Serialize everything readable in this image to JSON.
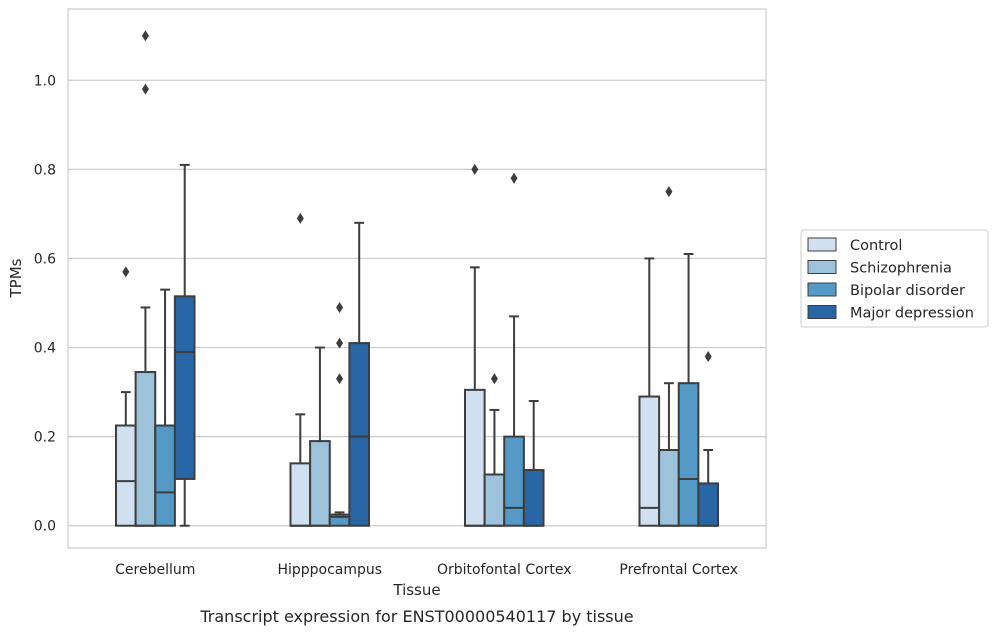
{
  "caption": "Transcript expression for ENST00000540117 by tissue",
  "chart_data": {
    "type": "box",
    "title": "",
    "xlabel": "Tissue",
    "ylabel": "TPMs",
    "ylim": [
      -0.05,
      1.16
    ],
    "yticks": [
      "0.0",
      "0.2",
      "0.4",
      "0.6",
      "0.8",
      "1.0"
    ],
    "grid": "horizontal",
    "legend_position": "right",
    "categories": [
      "Cerebellum",
      "Hipppocampus",
      "Orbitofontal Cortex",
      "Prefrontal Cortex"
    ],
    "series": [
      {
        "name": "Control",
        "color": "#d0e0f1",
        "boxes": [
          {
            "whisker_low": 0.0,
            "q1": 0.0,
            "median": 0.1,
            "q3": 0.225,
            "whisker_high": 0.3,
            "outliers": [
              0.57
            ]
          },
          {
            "whisker_low": 0.0,
            "q1": 0.0,
            "median": 0.0,
            "q3": 0.14,
            "whisker_high": 0.25,
            "outliers": [
              0.69
            ]
          },
          {
            "whisker_low": 0.0,
            "q1": 0.0,
            "median": 0.0,
            "q3": 0.305,
            "whisker_high": 0.58,
            "outliers": [
              0.8
            ]
          },
          {
            "whisker_low": 0.0,
            "q1": 0.0,
            "median": 0.04,
            "q3": 0.29,
            "whisker_high": 0.6,
            "outliers": []
          }
        ]
      },
      {
        "name": "Schizophrenia",
        "color": "#9dc3dc",
        "boxes": [
          {
            "whisker_low": 0.0,
            "q1": 0.0,
            "median": 0.0,
            "q3": 0.345,
            "whisker_high": 0.49,
            "outliers": [
              1.1,
              0.98
            ]
          },
          {
            "whisker_low": 0.0,
            "q1": 0.0,
            "median": 0.0,
            "q3": 0.19,
            "whisker_high": 0.4,
            "outliers": []
          },
          {
            "whisker_low": 0.0,
            "q1": 0.0,
            "median": 0.0,
            "q3": 0.115,
            "whisker_high": 0.26,
            "outliers": [
              0.33
            ]
          },
          {
            "whisker_low": 0.0,
            "q1": 0.0,
            "median": 0.0,
            "q3": 0.17,
            "whisker_high": 0.32,
            "outliers": [
              0.75
            ]
          }
        ]
      },
      {
        "name": "Bipolar disorder",
        "color": "#5599c6",
        "boxes": [
          {
            "whisker_low": 0.0,
            "q1": 0.0,
            "median": 0.075,
            "q3": 0.225,
            "whisker_high": 0.53,
            "outliers": []
          },
          {
            "whisker_low": 0.0,
            "q1": 0.0,
            "median": 0.02,
            "q3": 0.025,
            "whisker_high": 0.03,
            "outliers": [
              0.49,
              0.41,
              0.33
            ]
          },
          {
            "whisker_low": 0.0,
            "q1": 0.0,
            "median": 0.04,
            "q3": 0.2,
            "whisker_high": 0.47,
            "outliers": [
              0.78
            ]
          },
          {
            "whisker_low": 0.0,
            "q1": 0.0,
            "median": 0.105,
            "q3": 0.32,
            "whisker_high": 0.61,
            "outliers": []
          }
        ]
      },
      {
        "name": "Major depression",
        "color": "#2866a6",
        "boxes": [
          {
            "whisker_low": 0.0,
            "q1": 0.105,
            "median": 0.39,
            "q3": 0.515,
            "whisker_high": 0.81,
            "outliers": []
          },
          {
            "whisker_low": 0.0,
            "q1": 0.0,
            "median": 0.2,
            "q3": 0.41,
            "whisker_high": 0.68,
            "outliers": []
          },
          {
            "whisker_low": 0.0,
            "q1": 0.0,
            "median": 0.0,
            "q3": 0.125,
            "whisker_high": 0.28,
            "outliers": []
          },
          {
            "whisker_low": 0.0,
            "q1": 0.0,
            "median": 0.0,
            "q3": 0.095,
            "whisker_high": 0.17,
            "outliers": [
              0.38
            ]
          }
        ]
      }
    ]
  }
}
